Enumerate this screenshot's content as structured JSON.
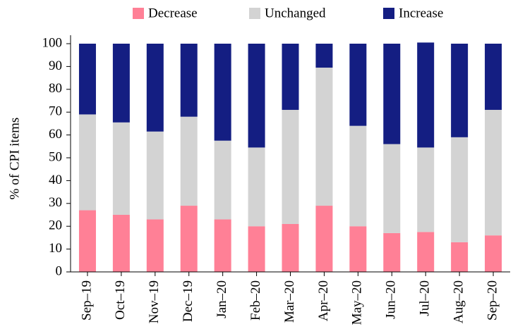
{
  "chart_data": {
    "type": "stacked_bar",
    "ylabel": "% of CPI items",
    "categories": [
      "Sep–19",
      "Oct–19",
      "Nov–19",
      "Dec–19",
      "Jan–20",
      "Feb–20",
      "Mar–20",
      "Apr–20",
      "May–20",
      "Jun–20",
      "Jul–20",
      "Aug–20",
      "Sep–20"
    ],
    "series": [
      {
        "name": "Decrease",
        "color": "#ff8096",
        "values": [
          27,
          25,
          23,
          29,
          23,
          20,
          21,
          29,
          20,
          17,
          17.5,
          13,
          16
        ]
      },
      {
        "name": "Unchanged",
        "color": "#d3d3d3",
        "values": [
          42,
          40.5,
          38.5,
          39,
          34.5,
          34.5,
          50,
          60.5,
          44,
          39,
          37,
          46,
          55
        ]
      },
      {
        "name": "Increase",
        "color": "#141e82",
        "values": [
          31,
          34.5,
          38.5,
          32,
          42.5,
          45.5,
          29,
          10.5,
          36,
          44,
          46,
          41,
          29
        ]
      }
    ],
    "ylim": [
      0,
      100
    ],
    "yticks": [
      0,
      10,
      20,
      30,
      40,
      50,
      60,
      70,
      80,
      90,
      100
    ],
    "legend": "top"
  }
}
